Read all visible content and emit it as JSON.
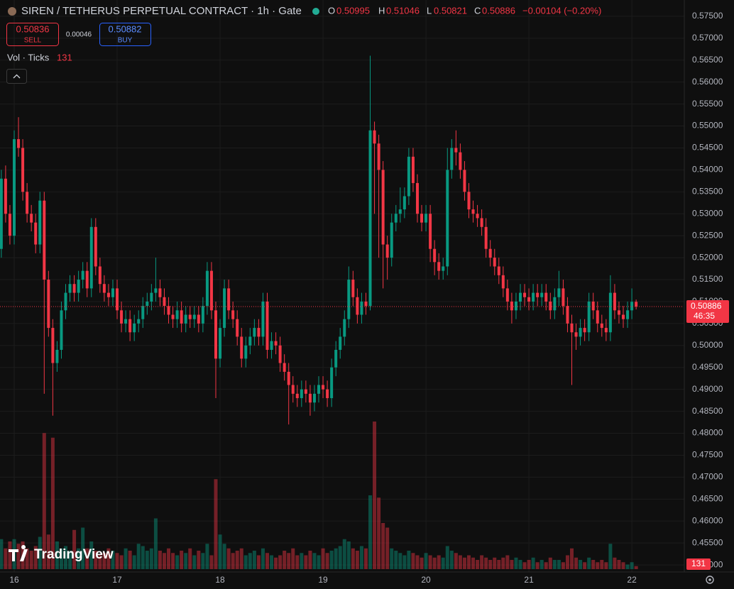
{
  "chart_data": {
    "type": "candlestick",
    "title": "SIREN / TETHERUS PERPETUAL CONTRACT · 1h · Gate",
    "header_labels": {
      "open": "O",
      "high": "H",
      "low": "L",
      "close": "C"
    },
    "change": "−0.00104 (−0.20%)",
    "sell": {
      "price": 0.50836,
      "label": "SELL"
    },
    "spread": 0.00046,
    "buy": {
      "price": 0.50882,
      "label": "BUY"
    },
    "volume_title": "Vol · Ticks",
    "countdown": "46:35",
    "brand": "TradingView",
    "up_color": "#089981",
    "down_color": "#f23645",
    "grid": true,
    "xlim": [
      -0.31,
      158.9
    ],
    "xticks": [
      {
        "value": 3,
        "label": "16"
      },
      {
        "value": 27,
        "label": "17"
      },
      {
        "value": 51,
        "label": "18"
      },
      {
        "value": 75,
        "label": "19"
      },
      {
        "value": 99,
        "label": "20"
      },
      {
        "value": 123,
        "label": "21"
      },
      {
        "value": 147,
        "label": "22"
      }
    ],
    "ylim": [
      0.4484,
      0.5787
    ],
    "yticks": [
      {
        "value": 0.45,
        "label": "0.45000"
      },
      {
        "value": 0.455,
        "label": "0.45500"
      },
      {
        "value": 0.46,
        "label": "0.46000"
      },
      {
        "value": 0.465,
        "label": "0.46500"
      },
      {
        "value": 0.47,
        "label": "0.47000"
      },
      {
        "value": 0.475,
        "label": "0.47500"
      },
      {
        "value": 0.48,
        "label": "0.48000"
      },
      {
        "value": 0.485,
        "label": "0.48500"
      },
      {
        "value": 0.49,
        "label": "0.49000"
      },
      {
        "value": 0.495,
        "label": "0.49500"
      },
      {
        "value": 0.5,
        "label": "0.50000"
      },
      {
        "value": 0.505,
        "label": "0.50500"
      },
      {
        "value": 0.51,
        "label": "0.51000"
      },
      {
        "value": 0.515,
        "label": "0.51500"
      },
      {
        "value": 0.52,
        "label": "0.52000"
      },
      {
        "value": 0.525,
        "label": "0.52500"
      },
      {
        "value": 0.53,
        "label": "0.53000"
      },
      {
        "value": 0.535,
        "label": "0.53500"
      },
      {
        "value": 0.54,
        "label": "0.54000"
      },
      {
        "value": 0.545,
        "label": "0.54500"
      },
      {
        "value": 0.55,
        "label": "0.55000"
      },
      {
        "value": 0.555,
        "label": "0.55500"
      },
      {
        "value": 0.56,
        "label": "0.56000"
      },
      {
        "value": 0.565,
        "label": "0.56500"
      },
      {
        "value": 0.57,
        "label": "0.57000"
      },
      {
        "value": 0.575,
        "label": "0.57500"
      }
    ],
    "volume_ylim": [
      0,
      24000
    ],
    "open": [
      0.522,
      0.538,
      0.53,
      0.525,
      0.547,
      0.545,
      0.535,
      0.53,
      0.528,
      0.523,
      0.533,
      0.515,
      0.504,
      0.496,
      0.499,
      0.508,
      0.512,
      0.514,
      0.512,
      0.515,
      0.517,
      0.513,
      0.527,
      0.518,
      0.514,
      0.512,
      0.511,
      0.513,
      0.508,
      0.505,
      0.506,
      0.503,
      0.505,
      0.506,
      0.509,
      0.51,
      0.512,
      0.513,
      0.511,
      0.509,
      0.507,
      0.506,
      0.508,
      0.505,
      0.507,
      0.506,
      0.507,
      0.505,
      0.509,
      0.517,
      0.508,
      0.497,
      0.504,
      0.513,
      0.508,
      0.506,
      0.502,
      0.497,
      0.5,
      0.502,
      0.504,
      0.502,
      0.51,
      0.499,
      0.501,
      0.5,
      0.496,
      0.494,
      0.491,
      0.489,
      0.488,
      0.49,
      0.489,
      0.487,
      0.489,
      0.491,
      0.49,
      0.488,
      0.495,
      0.499,
      0.502,
      0.506,
      0.515,
      0.511,
      0.507,
      0.51,
      0.509,
      0.549,
      0.546,
      0.54,
      0.523,
      0.52,
      0.528,
      0.53,
      0.531,
      0.534,
      0.543,
      0.537,
      0.53,
      0.528,
      0.53,
      0.522,
      0.519,
      0.517,
      0.518,
      0.54,
      0.545,
      0.544,
      0.54,
      0.535,
      0.531,
      0.53,
      0.529,
      0.527,
      0.522,
      0.52,
      0.518,
      0.516,
      0.513,
      0.51,
      0.508,
      0.51,
      0.512,
      0.511,
      0.51,
      0.512,
      0.511,
      0.512,
      0.51,
      0.508,
      0.511,
      0.513,
      0.509,
      0.505,
      0.503,
      0.502,
      0.504,
      0.503,
      0.51,
      0.508,
      0.505,
      0.504,
      0.503,
      0.512,
      0.508,
      0.507,
      0.506,
      0.508,
      0.50995
    ],
    "high": [
      0.54,
      0.541,
      0.532,
      0.549,
      0.552,
      0.547,
      0.537,
      0.532,
      0.53,
      0.535,
      0.535,
      0.517,
      0.506,
      0.501,
      0.51,
      0.514,
      0.516,
      0.516,
      0.517,
      0.519,
      0.519,
      0.529,
      0.529,
      0.52,
      0.516,
      0.514,
      0.515,
      0.515,
      0.51,
      0.508,
      0.508,
      0.507,
      0.508,
      0.511,
      0.512,
      0.514,
      0.52,
      0.515,
      0.513,
      0.511,
      0.509,
      0.51,
      0.51,
      0.509,
      0.509,
      0.509,
      0.509,
      0.511,
      0.519,
      0.519,
      0.51,
      0.506,
      0.515,
      0.515,
      0.51,
      0.508,
      0.504,
      0.502,
      0.504,
      0.506,
      0.506,
      0.512,
      0.512,
      0.503,
      0.503,
      0.502,
      0.498,
      0.496,
      0.493,
      0.491,
      0.492,
      0.492,
      0.491,
      0.491,
      0.493,
      0.493,
      0.492,
      0.497,
      0.501,
      0.504,
      0.508,
      0.518,
      0.517,
      0.513,
      0.512,
      0.512,
      0.566,
      0.551,
      0.548,
      0.542,
      0.525,
      0.53,
      0.532,
      0.536,
      0.536,
      0.545,
      0.545,
      0.539,
      0.532,
      0.532,
      0.532,
      0.524,
      0.521,
      0.52,
      0.545,
      0.547,
      0.549,
      0.546,
      0.542,
      0.537,
      0.533,
      0.532,
      0.531,
      0.529,
      0.524,
      0.522,
      0.52,
      0.518,
      0.515,
      0.512,
      0.512,
      0.514,
      0.514,
      0.513,
      0.514,
      0.514,
      0.514,
      0.514,
      0.512,
      0.513,
      0.517,
      0.515,
      0.511,
      0.507,
      0.505,
      0.506,
      0.506,
      0.512,
      0.512,
      0.51,
      0.507,
      0.506,
      0.516,
      0.514,
      0.51,
      0.509,
      0.51,
      0.513,
      0.51046
    ],
    "low": [
      0.52,
      0.528,
      0.523,
      0.523,
      0.543,
      0.533,
      0.528,
      0.526,
      0.521,
      0.521,
      0.489,
      0.502,
      0.484,
      0.494,
      0.497,
      0.506,
      0.51,
      0.51,
      0.51,
      0.513,
      0.511,
      0.511,
      0.516,
      0.512,
      0.51,
      0.509,
      0.509,
      0.506,
      0.503,
      0.503,
      0.501,
      0.501,
      0.503,
      0.504,
      0.507,
      0.508,
      0.51,
      0.509,
      0.507,
      0.505,
      0.504,
      0.504,
      0.503,
      0.503,
      0.504,
      0.504,
      0.503,
      0.503,
      0.507,
      0.506,
      0.488,
      0.495,
      0.502,
      0.506,
      0.504,
      0.5,
      0.495,
      0.495,
      0.498,
      0.5,
      0.5,
      0.5,
      0.497,
      0.497,
      0.498,
      0.494,
      0.492,
      0.482,
      0.487,
      0.486,
      0.486,
      0.487,
      0.484,
      0.485,
      0.487,
      0.488,
      0.486,
      0.486,
      0.493,
      0.497,
      0.5,
      0.504,
      0.509,
      0.505,
      0.505,
      0.507,
      0.508,
      0.53,
      0.52,
      0.513,
      0.515,
      0.518,
      0.526,
      0.528,
      0.529,
      0.532,
      0.535,
      0.528,
      0.526,
      0.526,
      0.519,
      0.516,
      0.515,
      0.515,
      0.516,
      0.538,
      0.541,
      0.538,
      0.533,
      0.529,
      0.528,
      0.527,
      0.525,
      0.52,
      0.518,
      0.516,
      0.514,
      0.511,
      0.508,
      0.505,
      0.506,
      0.508,
      0.509,
      0.508,
      0.508,
      0.509,
      0.509,
      0.508,
      0.506,
      0.506,
      0.509,
      0.507,
      0.503,
      0.491,
      0.499,
      0.5,
      0.501,
      0.501,
      0.506,
      0.503,
      0.502,
      0.501,
      0.501,
      0.506,
      0.505,
      0.504,
      0.504,
      0.506,
      0.50821
    ],
    "close": [
      0.538,
      0.53,
      0.525,
      0.547,
      0.545,
      0.535,
      0.53,
      0.528,
      0.523,
      0.533,
      0.515,
      0.504,
      0.496,
      0.499,
      0.508,
      0.512,
      0.514,
      0.512,
      0.515,
      0.517,
      0.513,
      0.527,
      0.518,
      0.514,
      0.512,
      0.511,
      0.513,
      0.508,
      0.505,
      0.506,
      0.503,
      0.505,
      0.506,
      0.509,
      0.51,
      0.512,
      0.513,
      0.511,
      0.509,
      0.507,
      0.506,
      0.508,
      0.505,
      0.507,
      0.506,
      0.507,
      0.505,
      0.509,
      0.517,
      0.508,
      0.497,
      0.504,
      0.513,
      0.508,
      0.506,
      0.502,
      0.497,
      0.5,
      0.502,
      0.504,
      0.502,
      0.51,
      0.499,
      0.501,
      0.5,
      0.496,
      0.494,
      0.491,
      0.489,
      0.488,
      0.49,
      0.489,
      0.487,
      0.489,
      0.491,
      0.49,
      0.488,
      0.495,
      0.499,
      0.502,
      0.506,
      0.515,
      0.511,
      0.507,
      0.51,
      0.509,
      0.549,
      0.546,
      0.54,
      0.523,
      0.52,
      0.528,
      0.53,
      0.531,
      0.534,
      0.543,
      0.537,
      0.53,
      0.528,
      0.53,
      0.522,
      0.519,
      0.517,
      0.518,
      0.54,
      0.545,
      0.544,
      0.54,
      0.535,
      0.531,
      0.53,
      0.529,
      0.527,
      0.522,
      0.52,
      0.518,
      0.516,
      0.513,
      0.51,
      0.508,
      0.51,
      0.512,
      0.511,
      0.51,
      0.512,
      0.511,
      0.512,
      0.51,
      0.508,
      0.511,
      0.513,
      0.509,
      0.505,
      0.503,
      0.502,
      0.504,
      0.503,
      0.51,
      0.508,
      0.505,
      0.504,
      0.503,
      0.512,
      0.508,
      0.507,
      0.506,
      0.508,
      0.50995,
      0.50886
    ],
    "volume": [
      1300,
      900,
      1200,
      1300,
      1100,
      1200,
      900,
      800,
      1000,
      1400,
      5900,
      1500,
      5700,
      1200,
      900,
      1000,
      800,
      1700,
      900,
      1800,
      900,
      1200,
      800,
      600,
      700,
      900,
      800,
      700,
      600,
      900,
      800,
      600,
      1100,
      1000,
      800,
      900,
      2200,
      800,
      700,
      900,
      700,
      600,
      800,
      700,
      900,
      600,
      800,
      700,
      1100,
      600,
      3900,
      1500,
      1100,
      900,
      700,
      800,
      900,
      600,
      700,
      800,
      600,
      900,
      700,
      600,
      500,
      600,
      800,
      700,
      900,
      600,
      700,
      600,
      800,
      700,
      600,
      900,
      700,
      800,
      900,
      1000,
      1300,
      1200,
      900,
      800,
      1000,
      900,
      3200,
      6400,
      3100,
      2000,
      1800,
      900,
      800,
      700,
      600,
      800,
      700,
      600,
      500,
      700,
      600,
      500,
      600,
      500,
      1000,
      800,
      700,
      600,
      500,
      600,
      500,
      400,
      600,
      500,
      400,
      500,
      400,
      500,
      600,
      400,
      500,
      400,
      300,
      400,
      500,
      300,
      400,
      300,
      500,
      400,
      400,
      300,
      600,
      900,
      500,
      400,
      300,
      500,
      400,
      300,
      400,
      300,
      1100,
      500,
      400,
      300,
      200,
      300,
      131
    ]
  }
}
